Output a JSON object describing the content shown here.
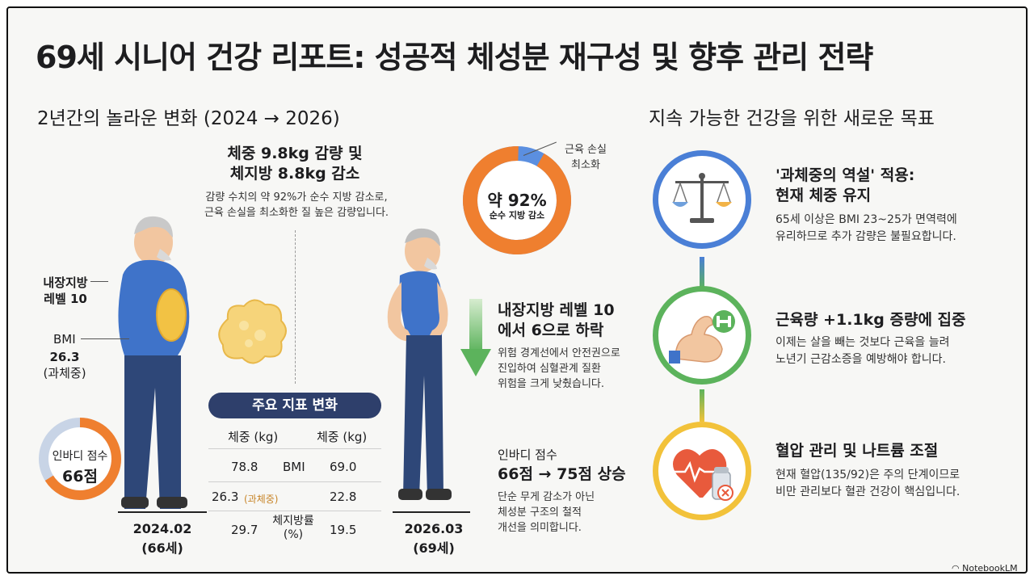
{
  "title": "69세 시니어 건강 리포트: 성공적 체성분 재구성 및 향후 관리 전략",
  "left_section": {
    "heading": "2년간의 놀라운 변화 (2024 → 2026)",
    "weight_headline": "체중 9.8kg 감량 및\n체지방 8.8kg 감소",
    "weight_desc": "감량 수치의 약 92%가 순수 지방 감소로,\n근육 손실을 최소화한 질 높은 감량입니다.",
    "before": {
      "visceral_label": "내장지방\n레벨 10",
      "bmi_label": "BMI",
      "bmi_value": "26.3",
      "bmi_note": "(과체중)",
      "inbody_label": "인바디 점수",
      "inbody_value": "66점",
      "inbody_fraction": 0.66,
      "date": "2024.02",
      "age": "(66세)"
    },
    "after": {
      "date": "2026.03",
      "age": "(69세)"
    },
    "donut": {
      "value_label": "약 92%",
      "sub_label": "순수 지방 감소",
      "callout": "근육 손실\n최소화",
      "fraction": 0.92
    },
    "visceral_change": {
      "headline": "내장지방 레벨 10\n에서 6으로 하락",
      "desc": "위험 경계선에서 안전권으로\n진입하여 심혈관계 질환\n위험을 크게 낮췄습니다."
    },
    "inbody_change": {
      "label": "인바디 점수",
      "headline": "66점 → 75점 상승",
      "desc": "단순 무게 감소가 아닌\n체성분 구조의 철적\n개선을 의미합니다."
    },
    "table": {
      "title": "주요 지표 변화",
      "header_left": "체중 (kg)",
      "header_right": "체중 (kg)",
      "rows": [
        {
          "left": "78.8",
          "mid": "BMI",
          "right": "69.0"
        },
        {
          "left": "26.3",
          "left_note": "(과체중)",
          "mid": "",
          "right": "22.8"
        },
        {
          "left": "29.7",
          "mid": "체지방률\n(%)",
          "right": "19.5"
        }
      ]
    }
  },
  "right_section": {
    "heading": "지속 가능한 건강을 위한 새로운 목표",
    "goals": [
      {
        "icon": "balance-scale-icon",
        "title": "'과체중의 역설' 적용:\n현재 체중 유지",
        "desc": "65세 이상은 BMI 23~25가 면역력에\n유리하므로 추가 감량은 불필요합니다.",
        "ring_color": "#4a7fd6"
      },
      {
        "icon": "flexed-arm-dumbbell-icon",
        "title": "근육량 +1.1kg 증량에 집중",
        "desc": "이제는 살을 빼는 것보다 근육을 늘려\n노년기 근감소증을 예방해야 합니다.",
        "ring_color": "#5cb35c"
      },
      {
        "icon": "heart-salt-icon",
        "title": "혈압 관리 및 나트륨 조절",
        "desc": "현재 혈압(135/92)은 주의 단계이므로\n비만 관리보다 혈관 건강이 핵심입니다.",
        "ring_color": "#f2c23a"
      }
    ]
  },
  "brand": "NotebookLM",
  "colors": {
    "blue": "#3f73c9",
    "orange": "#ef7f2f",
    "green": "#5cb35c",
    "yellow": "#f2c23a",
    "navy": "#2e3f6b"
  }
}
